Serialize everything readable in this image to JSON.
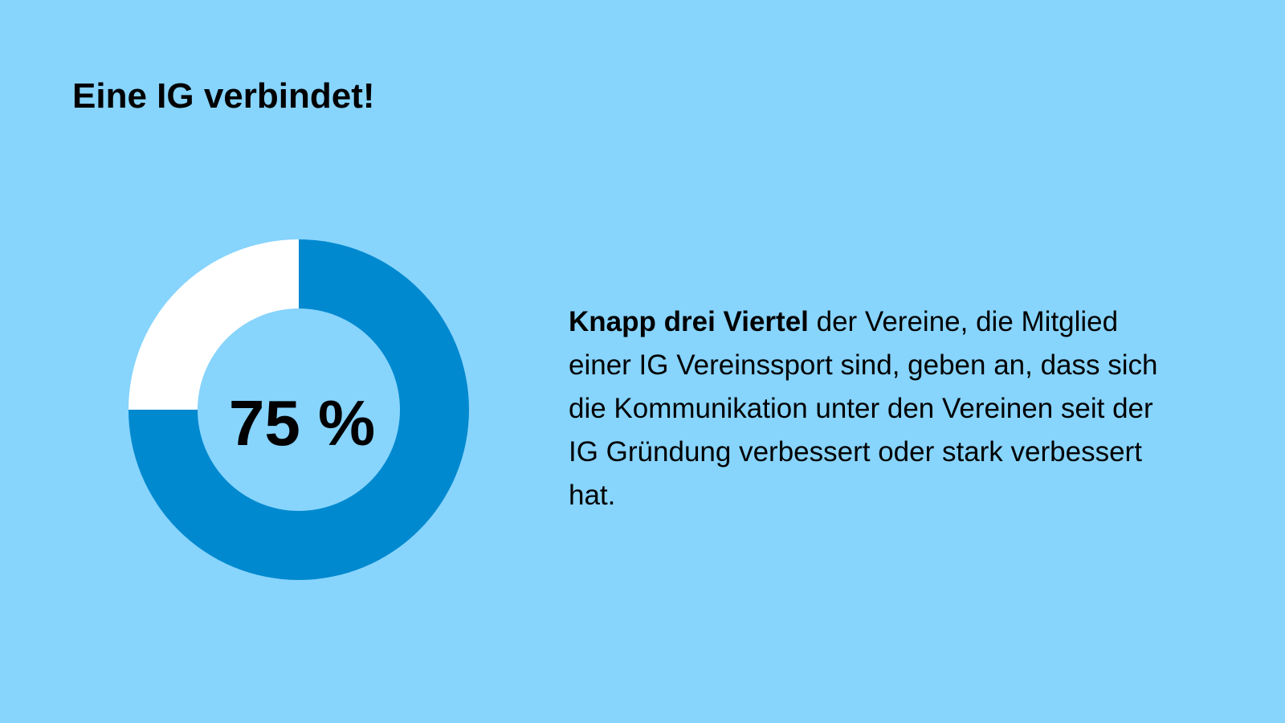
{
  "background_color": "#87d4fd",
  "title": "Eine IG verbindet!",
  "description": {
    "lead_bold": "Knapp drei Viertel",
    "text": " der Vereine, die Mitglied einer IG Vereinssport sind, geben an, dass sich die Kommunikation unter den Vereinen seit der IG Gründung verbessert oder stark verbessert hat."
  },
  "chart_data": {
    "type": "pie",
    "subtype": "donut",
    "center_label": "75 %",
    "slices": [
      {
        "value": 75,
        "color": "#0089cf"
      },
      {
        "value": 25,
        "color": "#ffffff"
      }
    ],
    "start_angle_deg": 0,
    "direction": "clockwise"
  }
}
